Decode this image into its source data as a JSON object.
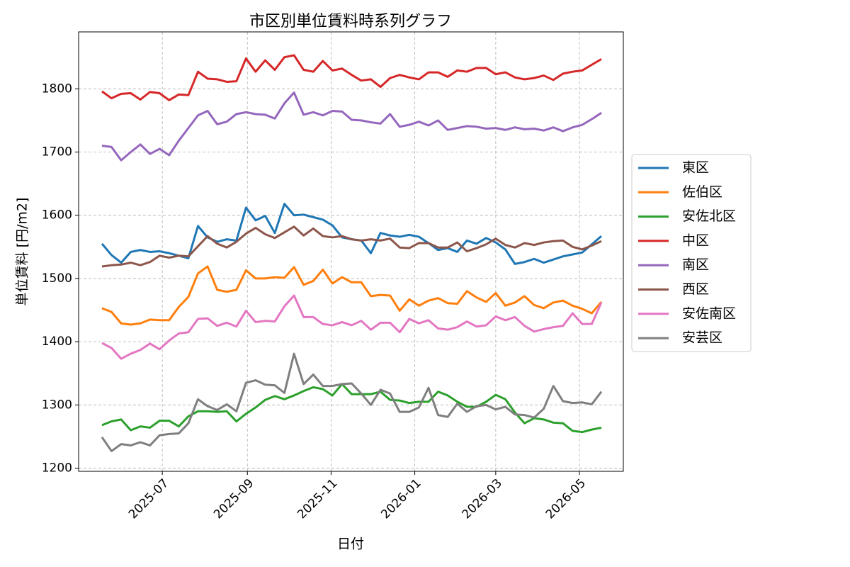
{
  "chart_data": {
    "type": "line",
    "title": "市区別単位賃料時系列グラフ",
    "x_label": "日付",
    "y_label": "単位賃料 [円/m2]",
    "x": [
      "2025-05-18",
      "2025-05-25",
      "2025-06-01",
      "2025-06-08",
      "2025-06-15",
      "2025-06-22",
      "2025-06-29",
      "2025-07-06",
      "2025-07-13",
      "2025-07-20",
      "2025-07-27",
      "2025-08-03",
      "2025-08-10",
      "2025-08-17",
      "2025-08-24",
      "2025-08-31",
      "2025-09-07",
      "2025-09-14",
      "2025-09-21",
      "2025-09-28",
      "2025-10-05",
      "2025-10-12",
      "2025-10-19",
      "2025-10-26",
      "2025-11-02",
      "2025-11-09",
      "2025-11-16",
      "2025-11-23",
      "2025-11-30",
      "2025-12-07",
      "2025-12-14",
      "2025-12-21",
      "2025-12-28",
      "2026-01-04",
      "2026-01-11",
      "2026-01-18",
      "2026-01-25",
      "2026-02-01",
      "2026-02-08",
      "2026-02-15",
      "2026-02-22",
      "2026-03-01",
      "2026-03-08",
      "2026-03-15",
      "2026-03-22",
      "2026-03-29",
      "2026-04-05",
      "2026-04-12",
      "2026-04-19",
      "2026-04-26",
      "2026-05-03",
      "2026-05-10",
      "2026-05-17"
    ],
    "xlim": [
      "2025-05-01",
      "2026-06-02"
    ],
    "xticks": [
      "2025-07",
      "2025-09",
      "2025-11",
      "2026-01",
      "2026-03",
      "2026-05"
    ],
    "ylim": [
      1195,
      1890
    ],
    "yticks": [
      1200,
      1300,
      1400,
      1500,
      1600,
      1700,
      1800
    ],
    "grid": true,
    "legend": "outside right",
    "series": [
      {
        "name": "東区",
        "color": "#1f77b4",
        "values": [
          1555,
          1537,
          1525,
          1542,
          1545,
          1542,
          1543,
          1540,
          1536,
          1532,
          1583,
          1565,
          1558,
          1562,
          1560,
          1612,
          1592,
          1599,
          1572,
          1618,
          1600,
          1601,
          1597,
          1593,
          1584,
          1565,
          1562,
          1560,
          1540,
          1572,
          1568,
          1566,
          1569,
          1566,
          1556,
          1545,
          1548,
          1542,
          1560,
          1555,
          1564,
          1557,
          1546,
          1523,
          1526,
          1531,
          1525,
          1530,
          1535,
          1538,
          1541,
          1554,
          1567
        ]
      },
      {
        "name": "佐伯区",
        "color": "#ff7f0e",
        "values": [
          1453,
          1447,
          1429,
          1427,
          1429,
          1435,
          1434,
          1434,
          1455,
          1471,
          1508,
          1519,
          1482,
          1479,
          1482,
          1513,
          1500,
          1500,
          1502,
          1501,
          1518,
          1490,
          1496,
          1514,
          1492,
          1502,
          1494,
          1494,
          1472,
          1474,
          1473,
          1449,
          1467,
          1457,
          1465,
          1469,
          1461,
          1460,
          1480,
          1470,
          1463,
          1477,
          1457,
          1462,
          1472,
          1458,
          1453,
          1462,
          1465,
          1457,
          1452,
          1445,
          1463
        ]
      },
      {
        "name": "安佐北区",
        "color": "#2ca02c",
        "values": [
          1268,
          1274,
          1277,
          1260,
          1266,
          1264,
          1275,
          1275,
          1266,
          1282,
          1290,
          1290,
          1289,
          1290,
          1274,
          1286,
          1296,
          1308,
          1314,
          1309,
          1315,
          1322,
          1328,
          1325,
          1315,
          1333,
          1317,
          1317,
          1317,
          1321,
          1308,
          1307,
          1303,
          1305,
          1305,
          1321,
          1315,
          1305,
          1297,
          1297,
          1305,
          1316,
          1309,
          1288,
          1271,
          1279,
          1277,
          1272,
          1271,
          1259,
          1257,
          1261,
          1264
        ]
      },
      {
        "name": "中区",
        "color": "#d62728",
        "values": [
          1796,
          1785,
          1792,
          1793,
          1783,
          1795,
          1793,
          1782,
          1791,
          1790,
          1827,
          1816,
          1815,
          1811,
          1812,
          1848,
          1827,
          1845,
          1830,
          1850,
          1853,
          1830,
          1827,
          1844,
          1829,
          1832,
          1822,
          1813,
          1815,
          1803,
          1817,
          1822,
          1818,
          1815,
          1826,
          1826,
          1819,
          1829,
          1827,
          1833,
          1833,
          1823,
          1826,
          1818,
          1815,
          1817,
          1821,
          1814,
          1824,
          1827,
          1829,
          1838,
          1847
        ]
      },
      {
        "name": "南区",
        "color": "#9467bd",
        "values": [
          1710,
          1708,
          1687,
          1700,
          1712,
          1697,
          1705,
          1695,
          1718,
          1738,
          1758,
          1765,
          1744,
          1748,
          1760,
          1763,
          1760,
          1759,
          1753,
          1777,
          1794,
          1759,
          1763,
          1758,
          1765,
          1764,
          1751,
          1750,
          1747,
          1745,
          1760,
          1740,
          1743,
          1748,
          1742,
          1750,
          1735,
          1738,
          1741,
          1740,
          1737,
          1738,
          1735,
          1739,
          1736,
          1737,
          1734,
          1739,
          1733,
          1739,
          1743,
          1752,
          1762
        ]
      },
      {
        "name": "西区",
        "color": "#8c564b",
        "values": [
          1519,
          1521,
          1522,
          1525,
          1521,
          1526,
          1536,
          1533,
          1536,
          1535,
          1551,
          1567,
          1555,
          1549,
          1558,
          1571,
          1580,
          1570,
          1564,
          1573,
          1582,
          1568,
          1579,
          1567,
          1565,
          1567,
          1562,
          1560,
          1562,
          1560,
          1563,
          1549,
          1548,
          1556,
          1556,
          1549,
          1549,
          1557,
          1543,
          1548,
          1554,
          1563,
          1553,
          1549,
          1556,
          1553,
          1557,
          1559,
          1560,
          1550,
          1546,
          1552,
          1559
        ]
      },
      {
        "name": "安佐南区",
        "color": "#e377c2",
        "values": [
          1398,
          1390,
          1373,
          1381,
          1387,
          1397,
          1388,
          1402,
          1413,
          1415,
          1436,
          1437,
          1425,
          1430,
          1424,
          1449,
          1431,
          1433,
          1432,
          1456,
          1473,
          1439,
          1439,
          1428,
          1426,
          1431,
          1426,
          1433,
          1419,
          1430,
          1430,
          1415,
          1436,
          1429,
          1434,
          1421,
          1419,
          1423,
          1432,
          1424,
          1426,
          1440,
          1434,
          1439,
          1425,
          1416,
          1420,
          1423,
          1425,
          1445,
          1428,
          1428,
          1462
        ]
      },
      {
        "name": "安芸区",
        "color": "#7f7f7f",
        "values": [
          1249,
          1227,
          1238,
          1236,
          1241,
          1236,
          1252,
          1254,
          1255,
          1271,
          1309,
          1298,
          1292,
          1301,
          1290,
          1335,
          1339,
          1332,
          1331,
          1319,
          1381,
          1333,
          1348,
          1330,
          1330,
          1333,
          1334,
          1318,
          1300,
          1324,
          1318,
          1289,
          1289,
          1296,
          1327,
          1284,
          1281,
          1302,
          1289,
          1298,
          1300,
          1293,
          1297,
          1285,
          1284,
          1280,
          1294,
          1330,
          1306,
          1303,
          1304,
          1301,
          1321
        ]
      }
    ]
  }
}
